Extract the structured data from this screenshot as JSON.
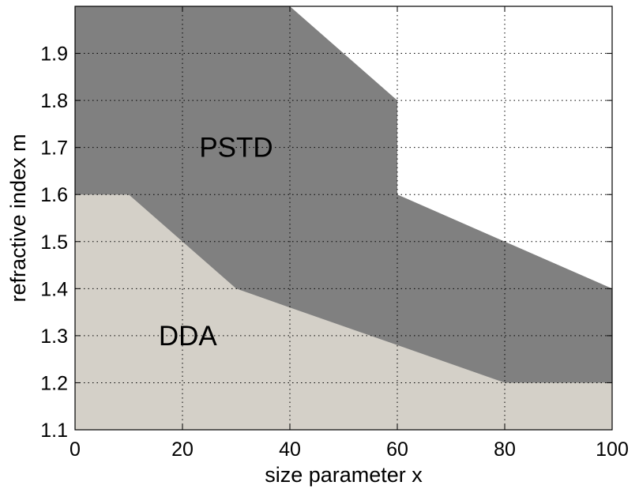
{
  "chart_data": {
    "type": "area",
    "xlabel": "size parameter x",
    "ylabel": "refractive index m",
    "xlim": [
      0,
      100
    ],
    "ylim": [
      1.1,
      2.0
    ],
    "x_ticks": [
      0,
      20,
      40,
      60,
      80,
      100
    ],
    "y_ticks": [
      1.1,
      1.2,
      1.3,
      1.4,
      1.5,
      1.6,
      1.7,
      1.8,
      1.9
    ],
    "x_tick_labels": [
      "0",
      "20",
      "40",
      "60",
      "80",
      "100"
    ],
    "y_tick_labels": [
      "1.1",
      "1.2",
      "1.3",
      "1.4",
      "1.5",
      "1.6",
      "1.7",
      "1.8",
      "1.9"
    ],
    "grid": true,
    "regions": [
      {
        "label": "PSTD",
        "color": "#808080",
        "label_at": [
          30,
          1.7
        ],
        "boundary": [
          [
            0,
            1.1
          ],
          [
            0,
            2.0
          ],
          [
            40,
            2.0
          ],
          [
            60,
            1.8
          ],
          [
            60,
            1.6
          ],
          [
            80,
            1.5
          ],
          [
            100,
            1.4
          ],
          [
            100,
            1.1
          ]
        ]
      },
      {
        "label": "DDA",
        "color": "#d4d0c8",
        "label_at": [
          21,
          1.3
        ],
        "boundary": [
          [
            0,
            1.1
          ],
          [
            0,
            1.6
          ],
          [
            10,
            1.6
          ],
          [
            20,
            1.5
          ],
          [
            30,
            1.4
          ],
          [
            40,
            1.36
          ],
          [
            60,
            1.28
          ],
          [
            80,
            1.2
          ],
          [
            100,
            1.2
          ],
          [
            100,
            1.1
          ]
        ]
      }
    ]
  }
}
